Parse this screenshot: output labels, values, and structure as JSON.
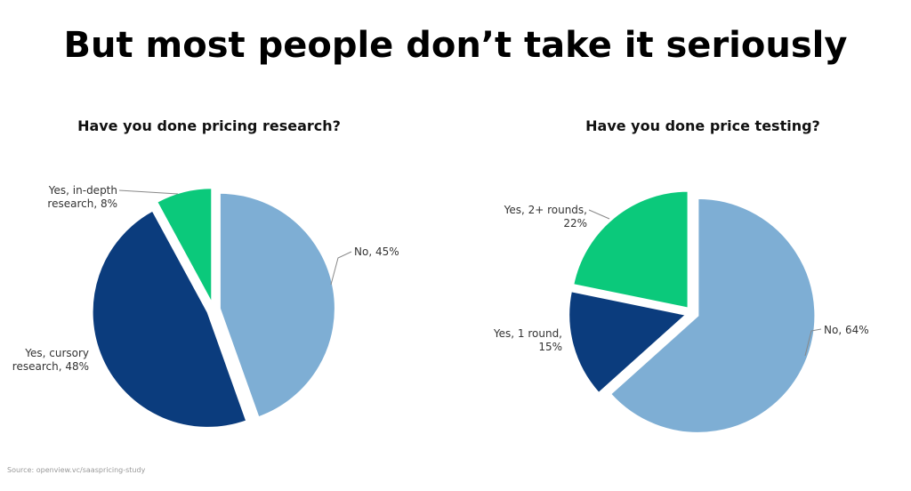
{
  "title": "But most people don’t take it seriously",
  "source": "Source: openview.vc/saaspricing-study",
  "chart_data": [
    {
      "type": "pie",
      "title": "Have you done pricing research?",
      "values": [
        45,
        48,
        8
      ],
      "value_labels": [
        "No, 45%",
        "Yes, cursory research, 48%",
        "Yes, in-depth research, 8%"
      ],
      "colors": [
        "#7eaed4",
        "#0b3c7d",
        "#0bc97b"
      ]
    },
    {
      "type": "pie",
      "title": "Have you done price testing?",
      "values": [
        64,
        15,
        22
      ],
      "value_labels": [
        "No, 64%",
        "Yes, 1 round, 15%",
        "Yes, 2+ rounds, 22%"
      ],
      "colors": [
        "#7eaed4",
        "#0b3c7d",
        "#0bc97b"
      ]
    }
  ]
}
